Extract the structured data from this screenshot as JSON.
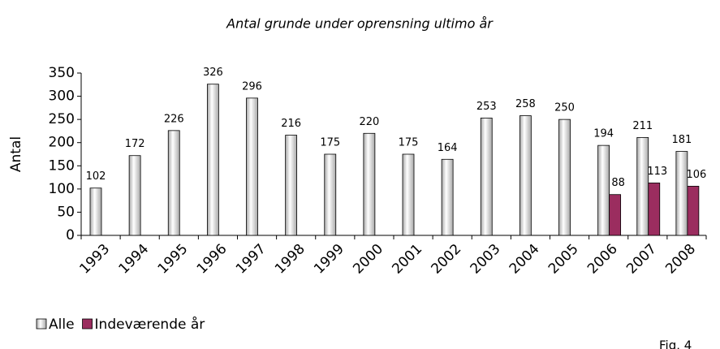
{
  "chart_data": {
    "type": "bar",
    "title": "Antal grunde under oprensning ultimo år",
    "y_label": "Antal",
    "annotation": "Fig. 4",
    "categories": [
      "1993",
      "1994",
      "1995",
      "1996",
      "1997",
      "1998",
      "1999",
      "2000",
      "2001",
      "2002",
      "2003",
      "2004",
      "2005",
      "2006",
      "2007",
      "2008"
    ],
    "series": [
      {
        "name": "Alle",
        "color": "#a8a8a8",
        "values": [
          102,
          172,
          226,
          326,
          296,
          216,
          175,
          220,
          175,
          164,
          253,
          258,
          250,
          194,
          211,
          181
        ]
      },
      {
        "name": "Indeværende år",
        "color": "#9b2d5f",
        "values": [
          null,
          null,
          null,
          null,
          null,
          null,
          null,
          null,
          null,
          null,
          null,
          null,
          null,
          88,
          113,
          106
        ]
      }
    ],
    "ylim": [
      0,
      350
    ],
    "yticks": [
      0,
      50,
      100,
      150,
      200,
      250,
      300,
      350
    ],
    "legend": "bottom-left"
  }
}
